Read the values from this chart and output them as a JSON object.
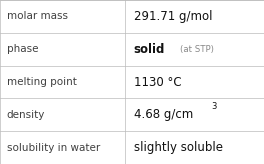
{
  "rows": [
    {
      "label": "molar mass",
      "value": "291.71 g/mol",
      "type": "plain"
    },
    {
      "label": "phase",
      "value": "solid",
      "suffix": "(at STP)",
      "type": "phase"
    },
    {
      "label": "melting point",
      "value": "1130 °C",
      "type": "plain"
    },
    {
      "label": "density",
      "value": "4.68 g/cm",
      "superscript": "3",
      "type": "density"
    },
    {
      "label": "solubility in water",
      "value": "slightly soluble",
      "type": "plain"
    }
  ],
  "bg_color": "#ffffff",
  "line_color": "#bbbbbb",
  "label_color": "#404040",
  "value_color": "#111111",
  "suffix_color": "#888888",
  "col_split": 0.472,
  "label_fontsize": 7.5,
  "value_fontsize": 8.5,
  "suffix_fontsize": 6.2,
  "super_fontsize": 6.0
}
